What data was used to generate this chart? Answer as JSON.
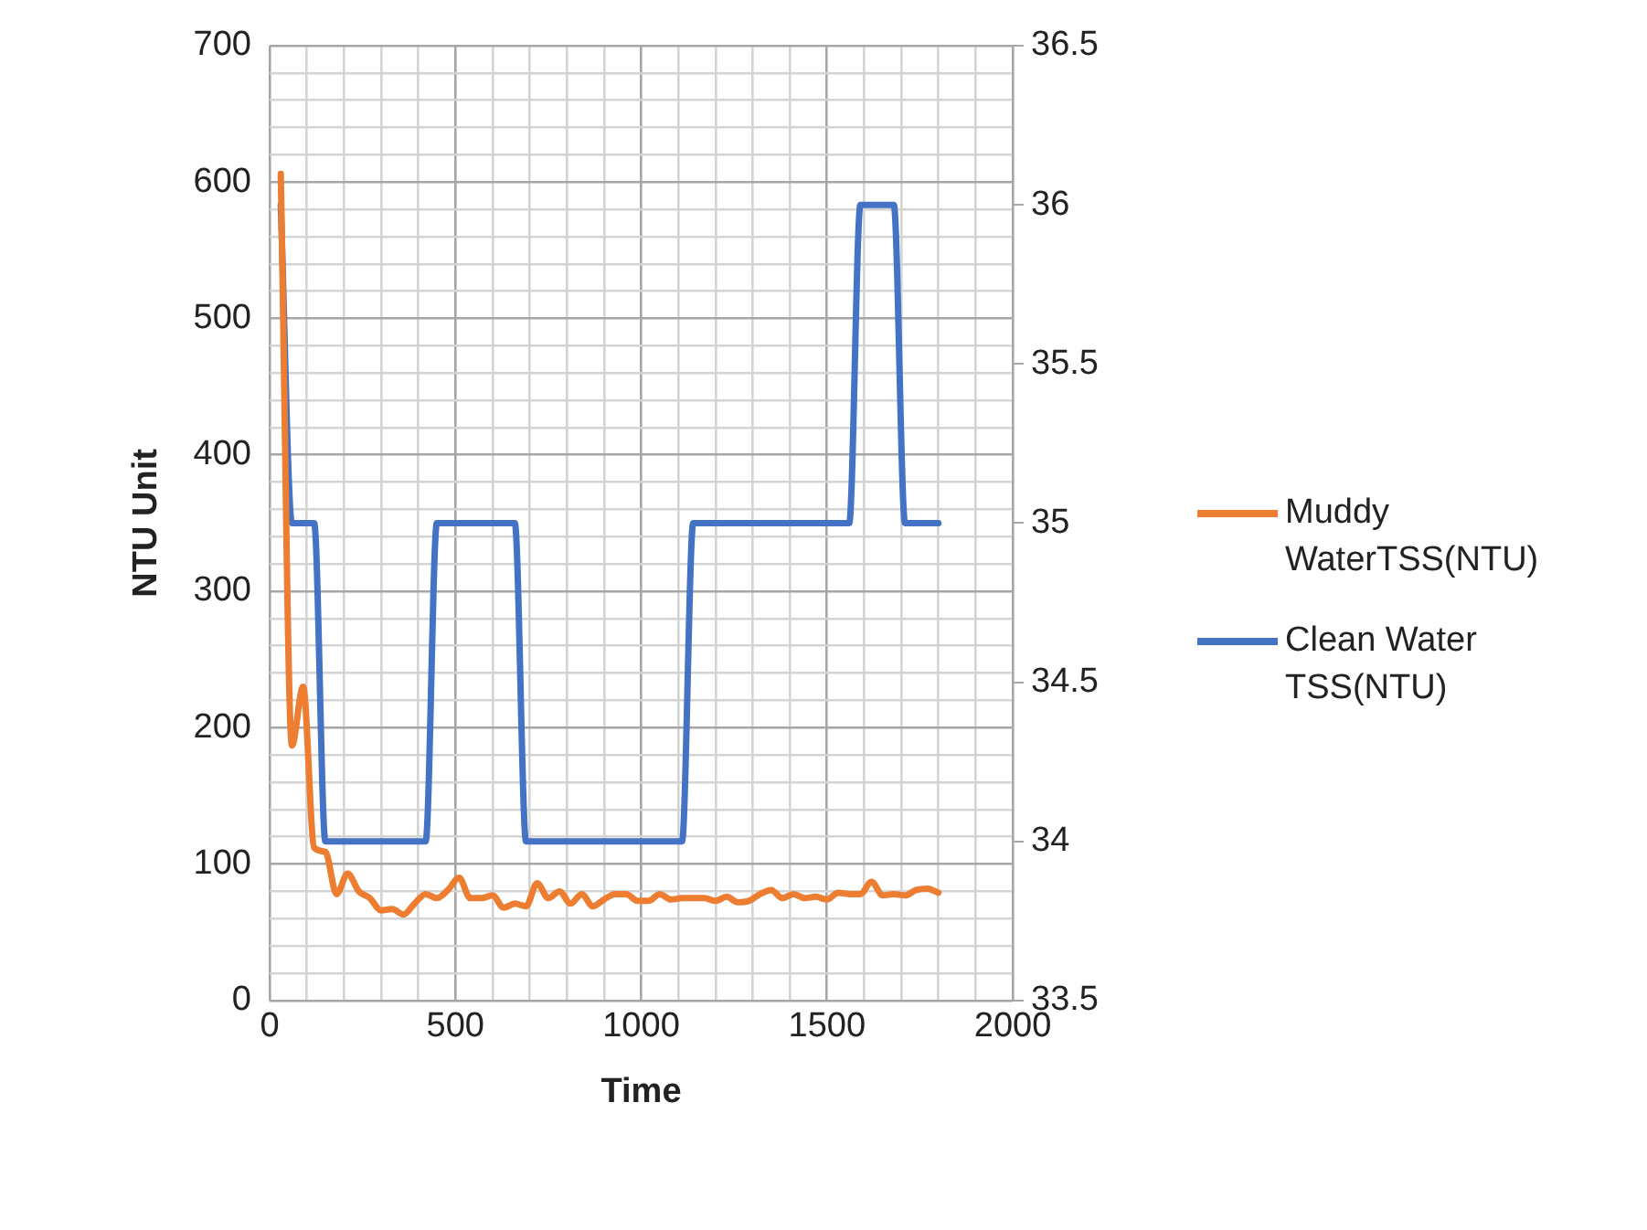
{
  "chart_data": {
    "type": "line",
    "xlabel": "Time",
    "ylabel": "NTU Unit",
    "x": [
      30,
      60,
      90,
      120,
      150,
      180,
      210,
      240,
      270,
      300,
      330,
      360,
      390,
      420,
      450,
      480,
      510,
      540,
      570,
      600,
      630,
      660,
      690,
      720,
      750,
      780,
      810,
      840,
      870,
      900,
      930,
      960,
      990,
      1020,
      1050,
      1080,
      1110,
      1140,
      1170,
      1200,
      1230,
      1260,
      1290,
      1320,
      1350,
      1380,
      1410,
      1440,
      1470,
      1500,
      1530,
      1560,
      1590,
      1620,
      1650,
      1680,
      1710,
      1740,
      1770,
      1800
    ],
    "series": [
      {
        "name": "Muddy WaterTSS(NTU)",
        "color": "#ed7d31",
        "values": [
          606,
          187,
          230,
          112,
          109,
          78,
          93,
          80,
          75,
          66,
          67,
          63,
          71,
          78,
          75,
          81,
          90,
          75,
          75,
          77,
          68,
          71,
          69,
          86,
          75,
          80,
          71,
          78,
          69,
          74,
          78,
          78,
          73,
          73,
          78,
          74,
          75,
          75,
          75,
          73,
          76,
          72,
          73,
          78,
          81,
          75,
          78,
          75,
          76,
          74,
          79,
          78,
          78,
          87,
          77,
          78,
          77,
          81,
          82,
          79
        ]
      },
      {
        "name": "Clean Water TSS(NTU)",
        "color": "#4472c4",
        "axis": "y2",
        "values": [
          36,
          35,
          35,
          35,
          34,
          34,
          34,
          34,
          34,
          34,
          34,
          34,
          34,
          34,
          35,
          35,
          35,
          35,
          35,
          35,
          35,
          35,
          34,
          34,
          34,
          34,
          34,
          34,
          34,
          34,
          34,
          34,
          34,
          34,
          34,
          34,
          34,
          35,
          35,
          35,
          35,
          35,
          35,
          35,
          35,
          35,
          35,
          35,
          35,
          35,
          35,
          35,
          36,
          36,
          36,
          36,
          35,
          35,
          35,
          35
        ]
      }
    ],
    "xlim": [
      0,
      2000
    ],
    "xticks": [
      0,
      {
        "value": 100,
        "label": null
      },
      {
        "value": 200,
        "label": null
      },
      {
        "value": 300,
        "label": null
      },
      {
        "value": 400,
        "label": null
      },
      500,
      {
        "value": 600,
        "label": null
      },
      {
        "value": 700,
        "label": null
      },
      {
        "value": 800,
        "label": null
      },
      {
        "value": 900,
        "label": null
      },
      1000,
      {
        "value": 1100,
        "label": null
      },
      {
        "value": 1200,
        "label": null
      },
      {
        "value": 1300,
        "label": null
      },
      {
        "value": 1400,
        "label": null
      },
      1500,
      {
        "value": 1600,
        "label": null
      },
      {
        "value": 1700,
        "label": null
      },
      {
        "value": 1800,
        "label": null
      },
      {
        "value": 1900,
        "label": null
      },
      2000
    ],
    "ylim": [
      0,
      700
    ],
    "yticks": [
      0,
      {
        "value": 20,
        "label": null
      },
      {
        "value": 40,
        "label": null
      },
      {
        "value": 60,
        "label": null
      },
      {
        "value": 80,
        "label": null
      },
      100,
      {
        "value": 120,
        "label": null
      },
      {
        "value": 140,
        "label": null
      },
      {
        "value": 160,
        "label": null
      },
      {
        "value": 180,
        "label": null
      },
      200,
      {
        "value": 220,
        "label": null
      },
      {
        "value": 240,
        "label": null
      },
      {
        "value": 260,
        "label": null
      },
      {
        "value": 280,
        "label": null
      },
      300,
      {
        "value": 320,
        "label": null
      },
      {
        "value": 340,
        "label": null
      },
      {
        "value": 360,
        "label": null
      },
      {
        "value": 380,
        "label": null
      },
      400,
      {
        "value": 420,
        "label": null
      },
      {
        "value": 440,
        "label": null
      },
      {
        "value": 460,
        "label": null
      },
      {
        "value": 480,
        "label": null
      },
      500,
      {
        "value": 520,
        "label": null
      },
      {
        "value": 540,
        "label": null
      },
      {
        "value": 560,
        "label": null
      },
      {
        "value": 580,
        "label": null
      },
      600,
      {
        "value": 620,
        "label": null
      },
      {
        "value": 640,
        "label": null
      },
      {
        "value": 660,
        "label": null
      },
      {
        "value": 680,
        "label": null
      },
      700
    ],
    "y2lim": [
      33.5,
      36.5
    ],
    "y2ticks": [
      33.5,
      34,
      34.5,
      35,
      35.5,
      36,
      36.5
    ],
    "grid": true,
    "legend": "right",
    "marker": "none",
    "line_style": "solid"
  }
}
